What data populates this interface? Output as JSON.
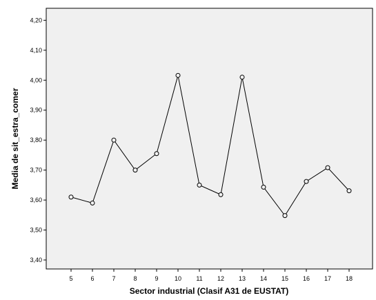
{
  "chart_data": {
    "type": "line",
    "title": "",
    "xlabel": "Sector industrial (Clasif A31 de EUSTAT)",
    "ylabel": "Media de sit_estra_comer",
    "categories": [
      "5",
      "6",
      "7",
      "8",
      "9",
      "10",
      "11",
      "12",
      "13",
      "14",
      "15",
      "16",
      "17",
      "18"
    ],
    "series": [
      {
        "values": [
          3.61,
          3.59,
          3.8,
          3.7,
          3.755,
          4.016,
          3.65,
          3.618,
          4.01,
          3.643,
          3.548,
          3.662,
          3.708,
          3.631
        ]
      }
    ],
    "y_ticks": [
      "3,40",
      "3,50",
      "3,60",
      "3,70",
      "3,80",
      "3,90",
      "4,00",
      "4,10",
      "4,20"
    ],
    "ylim": [
      3.37,
      4.24
    ],
    "grid": false,
    "legend": "none",
    "colors": {
      "plot_background": "#f0f0f0",
      "line": "#000000",
      "marker_fill": "#f0f0f0"
    }
  }
}
